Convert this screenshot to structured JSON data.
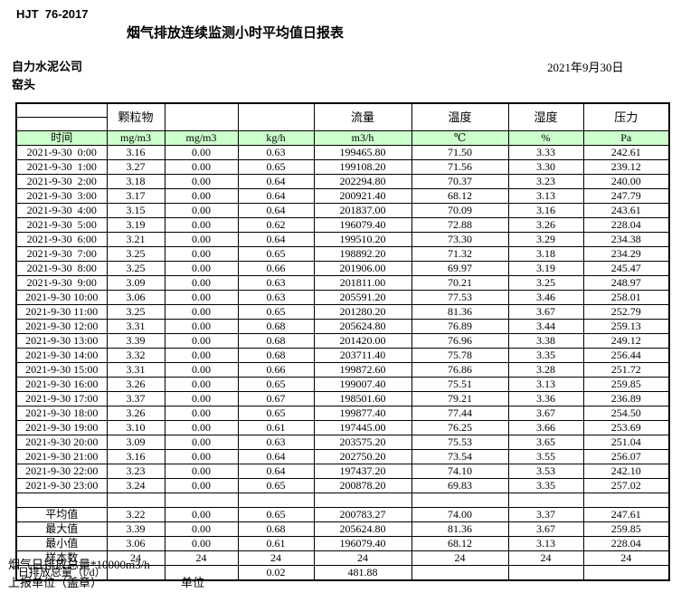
{
  "header": {
    "standard": "HJT  76-2017",
    "title": "烟气排放连续监测小时平均值日报表",
    "company": "自力水泥公司",
    "location": "窑头",
    "date": "2021年9月30日"
  },
  "colors": {
    "unit_row_green": "#ccffcc"
  },
  "table": {
    "param_headers": [
      "",
      "颗粒物",
      "",
      "",
      "流量",
      "温度",
      "湿度",
      "压力"
    ],
    "unit_row": {
      "time_label": "时间",
      "units": [
        "mg/m3",
        "mg/m3",
        "kg/h",
        "m3/h",
        "℃",
        "%",
        "Pa"
      ]
    },
    "rows": [
      {
        "time": "2021-9-30  0:00",
        "values": [
          "3.16",
          "0.00",
          "0.63",
          "199465.80",
          "71.50",
          "3.33",
          "242.61"
        ]
      },
      {
        "time": "2021-9-30  1:00",
        "values": [
          "3.27",
          "0.00",
          "0.65",
          "199108.20",
          "71.56",
          "3.30",
          "239.12"
        ]
      },
      {
        "time": "2021-9-30  2:00",
        "values": [
          "3.18",
          "0.00",
          "0.64",
          "202294.80",
          "70.37",
          "3.23",
          "240.00"
        ]
      },
      {
        "time": "2021-9-30  3:00",
        "values": [
          "3.17",
          "0.00",
          "0.64",
          "200921.40",
          "68.12",
          "3.13",
          "247.79"
        ]
      },
      {
        "time": "2021-9-30  4:00",
        "values": [
          "3.15",
          "0.00",
          "0.64",
          "201837.00",
          "70.09",
          "3.16",
          "243.61"
        ]
      },
      {
        "time": "2021-9-30  5:00",
        "values": [
          "3.19",
          "0.00",
          "0.62",
          "196079.40",
          "72.88",
          "3.26",
          "228.04"
        ]
      },
      {
        "time": "2021-9-30  6:00",
        "values": [
          "3.21",
          "0.00",
          "0.64",
          "199510.20",
          "73.30",
          "3.29",
          "234.38"
        ]
      },
      {
        "time": "2021-9-30  7:00",
        "values": [
          "3.25",
          "0.00",
          "0.65",
          "198892.20",
          "71.32",
          "3.18",
          "234.29"
        ]
      },
      {
        "time": "2021-9-30  8:00",
        "values": [
          "3.25",
          "0.00",
          "0.66",
          "201906.00",
          "69.97",
          "3.19",
          "245.47"
        ]
      },
      {
        "time": "2021-9-30  9:00",
        "values": [
          "3.09",
          "0.00",
          "0.63",
          "201811.00",
          "70.21",
          "3.25",
          "248.97"
        ]
      },
      {
        "time": "2021-9-30 10:00",
        "values": [
          "3.06",
          "0.00",
          "0.63",
          "205591.20",
          "77.53",
          "3.46",
          "258.01"
        ]
      },
      {
        "time": "2021-9-30 11:00",
        "values": [
          "3.25",
          "0.00",
          "0.65",
          "201280.20",
          "81.36",
          "3.67",
          "252.79"
        ]
      },
      {
        "time": "2021-9-30 12:00",
        "values": [
          "3.31",
          "0.00",
          "0.68",
          "205624.80",
          "76.89",
          "3.44",
          "259.13"
        ]
      },
      {
        "time": "2021-9-30 13:00",
        "values": [
          "3.39",
          "0.00",
          "0.68",
          "201420.00",
          "76.96",
          "3.38",
          "249.12"
        ]
      },
      {
        "time": "2021-9-30 14:00",
        "values": [
          "3.32",
          "0.00",
          "0.68",
          "203711.40",
          "75.78",
          "3.35",
          "256.44"
        ]
      },
      {
        "time": "2021-9-30 15:00",
        "values": [
          "3.31",
          "0.00",
          "0.66",
          "199872.60",
          "76.86",
          "3.28",
          "251.72"
        ]
      },
      {
        "time": "2021-9-30 16:00",
        "values": [
          "3.26",
          "0.00",
          "0.65",
          "199007.40",
          "75.51",
          "3.13",
          "259.85"
        ]
      },
      {
        "time": "2021-9-30 17:00",
        "values": [
          "3.37",
          "0.00",
          "0.67",
          "198501.60",
          "79.21",
          "3.36",
          "236.89"
        ]
      },
      {
        "time": "2021-9-30 18:00",
        "values": [
          "3.26",
          "0.00",
          "0.65",
          "199877.40",
          "77.44",
          "3.67",
          "254.50"
        ]
      },
      {
        "time": "2021-9-30 19:00",
        "values": [
          "3.10",
          "0.00",
          "0.61",
          "197445.00",
          "76.25",
          "3.66",
          "253.69"
        ]
      },
      {
        "time": "2021-9-30 20:00",
        "values": [
          "3.09",
          "0.00",
          "0.63",
          "203575.20",
          "75.53",
          "3.65",
          "251.04"
        ]
      },
      {
        "time": "2021-9-30 21:00",
        "values": [
          "3.16",
          "0.00",
          "0.64",
          "202750.20",
          "73.54",
          "3.55",
          "256.07"
        ]
      },
      {
        "time": "2021-9-30 22:00",
        "values": [
          "3.23",
          "0.00",
          "0.64",
          "197437.20",
          "74.10",
          "3.53",
          "242.10"
        ]
      },
      {
        "time": "2021-9-30 23:00",
        "values": [
          "3.24",
          "0.00",
          "0.65",
          "200878.20",
          "69.83",
          "3.35",
          "257.02"
        ]
      }
    ],
    "summary": [
      {
        "id": "average",
        "label": "平均值",
        "values": [
          "3.22",
          "0.00",
          "0.65",
          "200783.27",
          "74.00",
          "3.37",
          "247.61"
        ]
      },
      {
        "id": "maximum",
        "label": "最大值",
        "values": [
          "3.39",
          "0.00",
          "0.68",
          "205624.80",
          "81.36",
          "3.67",
          "259.85"
        ]
      },
      {
        "id": "minimum",
        "label": "最小值",
        "values": [
          "3.06",
          "0.00",
          "0.61",
          "196079.40",
          "68.12",
          "3.13",
          "228.04"
        ]
      },
      {
        "id": "sample_count",
        "label": "样本数",
        "values": [
          "24",
          "24",
          "24",
          "24",
          "24",
          "24",
          "24"
        ]
      },
      {
        "id": "daily_total",
        "label": "日排放总量（t/d）",
        "values": [
          "",
          "",
          "0.02",
          "481.88",
          "",
          "",
          ""
        ]
      }
    ]
  },
  "footer": {
    "note": "烟气日排放总量*10000m3/h",
    "report_unit": "上报单位（盖章）",
    "unit_label": "单位"
  }
}
